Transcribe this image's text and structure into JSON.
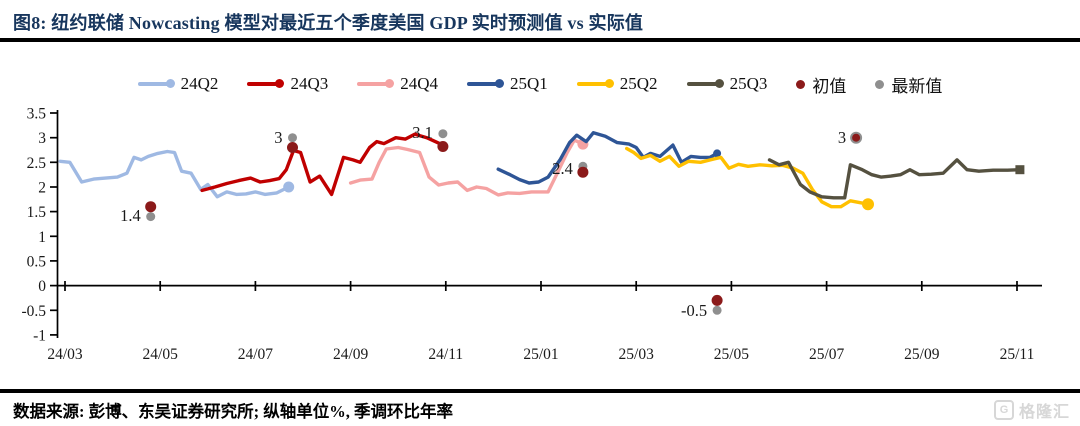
{
  "header": {
    "title": "图8:  纽约联储 Nowcasting 模型对最近五个季度美国 GDP 实时预测值 vs 实际值"
  },
  "footer": {
    "source": "数据来源: 彭博、东吴证券研究所; 纵轴单位%, 季调环比年率"
  },
  "watermark": {
    "icon": "G",
    "text": "格隆汇"
  },
  "chart_data": {
    "type": "line",
    "title": "纽约联储 Nowcasting 模型对最近五个季度美国 GDP 实时预测值 vs 实际值",
    "ylabel": "纵轴单位%, 季调环比年率",
    "ylim": [
      -1,
      3.5
    ],
    "yticks": [
      3.5,
      3,
      2.5,
      2,
      1.5,
      1,
      0.5,
      0,
      -0.5,
      -1
    ],
    "x_axis": {
      "tick_labels": [
        "24/03",
        "24/05",
        "24/07",
        "24/09",
        "24/11",
        "25/01",
        "25/03",
        "25/05",
        "25/07",
        "25/09",
        "25/11"
      ],
      "months_per_tick": 2
    },
    "grid": false,
    "legend_position": "top",
    "colors": {
      "initial": "#8B1A1A",
      "latest": "#8F8F8F"
    },
    "legend": [
      {
        "label": "24Q2",
        "color": "#9FB9E3",
        "marker": "line-dot"
      },
      {
        "label": "24Q3",
        "color": "#C00000",
        "marker": "line-dot"
      },
      {
        "label": "24Q4",
        "color": "#F5A2A2",
        "marker": "line-dot"
      },
      {
        "label": "25Q1",
        "color": "#2E5596",
        "marker": "line-dot"
      },
      {
        "label": "25Q2",
        "color": "#FFC000",
        "marker": "line-dot"
      },
      {
        "label": "25Q3",
        "color": "#555140",
        "marker": "line-dot"
      },
      {
        "label": "初值",
        "color": "#8B1A1A",
        "marker": "dot"
      },
      {
        "label": "最新值",
        "color": "#8F8F8F",
        "marker": "dot"
      }
    ],
    "series": [
      {
        "name": "24Q2",
        "color": "#9FB9E3",
        "points": [
          [
            -0.1,
            2.52
          ],
          [
            0.1,
            2.5
          ],
          [
            0.35,
            2.1
          ],
          [
            0.6,
            2.16
          ],
          [
            0.85,
            2.18
          ],
          [
            1.1,
            2.2
          ],
          [
            1.3,
            2.28
          ],
          [
            1.45,
            2.6
          ],
          [
            1.6,
            2.55
          ],
          [
            1.75,
            2.62
          ],
          [
            1.95,
            2.68
          ],
          [
            2.15,
            2.72
          ],
          [
            2.3,
            2.7
          ],
          [
            2.45,
            2.32
          ],
          [
            2.65,
            2.28
          ],
          [
            2.85,
            1.95
          ],
          [
            3.0,
            2.05
          ],
          [
            3.2,
            1.8
          ],
          [
            3.4,
            1.9
          ],
          [
            3.6,
            1.85
          ],
          [
            3.8,
            1.86
          ],
          [
            4.0,
            1.9
          ],
          [
            4.2,
            1.85
          ],
          [
            4.45,
            1.88
          ],
          [
            4.7,
            2.0
          ]
        ],
        "end_dot": {
          "x": 4.7,
          "y": 2.0,
          "shape": "circle",
          "r": 5.5
        }
      },
      {
        "name": "24Q3",
        "color": "#C00000",
        "points": [
          [
            2.88,
            1.93
          ],
          [
            3.15,
            2.0
          ],
          [
            3.4,
            2.07
          ],
          [
            3.65,
            2.13
          ],
          [
            3.9,
            2.18
          ],
          [
            4.1,
            2.1
          ],
          [
            4.3,
            2.13
          ],
          [
            4.5,
            2.17
          ],
          [
            4.65,
            2.35
          ],
          [
            4.8,
            2.74
          ],
          [
            4.95,
            2.7
          ],
          [
            5.15,
            2.1
          ],
          [
            5.35,
            2.22
          ],
          [
            5.6,
            1.85
          ],
          [
            5.85,
            2.6
          ],
          [
            6.05,
            2.55
          ],
          [
            6.2,
            2.5
          ],
          [
            6.4,
            2.8
          ],
          [
            6.55,
            2.92
          ],
          [
            6.7,
            2.88
          ],
          [
            6.95,
            3.0
          ],
          [
            7.15,
            2.97
          ],
          [
            7.35,
            3.07
          ],
          [
            7.6,
            3.0
          ],
          [
            7.94,
            2.85
          ]
        ],
        "end_dot": null
      },
      {
        "name": "24Q4",
        "color": "#F5A2A2",
        "points": [
          [
            6.0,
            2.08
          ],
          [
            6.2,
            2.14
          ],
          [
            6.45,
            2.16
          ],
          [
            6.6,
            2.5
          ],
          [
            6.75,
            2.77
          ],
          [
            7.0,
            2.8
          ],
          [
            7.2,
            2.76
          ],
          [
            7.45,
            2.7
          ],
          [
            7.65,
            2.2
          ],
          [
            7.85,
            2.04
          ],
          [
            8.05,
            2.08
          ],
          [
            8.25,
            2.1
          ],
          [
            8.45,
            1.93
          ],
          [
            8.65,
            2.0
          ],
          [
            8.85,
            1.97
          ],
          [
            9.1,
            1.84
          ],
          [
            9.3,
            1.88
          ],
          [
            9.55,
            1.87
          ],
          [
            9.8,
            1.9
          ],
          [
            10.15,
            1.9
          ],
          [
            10.35,
            2.3
          ],
          [
            10.55,
            2.7
          ],
          [
            10.7,
            2.95
          ],
          [
            10.88,
            2.87
          ]
        ],
        "end_dot": {
          "x": 10.88,
          "y": 2.87,
          "shape": "circle",
          "r": 5.5
        }
      },
      {
        "name": "25Q1",
        "color": "#2E5596",
        "points": [
          [
            9.1,
            2.36
          ],
          [
            9.35,
            2.25
          ],
          [
            9.55,
            2.15
          ],
          [
            9.75,
            2.08
          ],
          [
            9.95,
            2.1
          ],
          [
            10.15,
            2.2
          ],
          [
            10.4,
            2.55
          ],
          [
            10.6,
            2.9
          ],
          [
            10.75,
            3.05
          ],
          [
            10.95,
            2.92
          ],
          [
            11.1,
            3.1
          ],
          [
            11.35,
            3.03
          ],
          [
            11.6,
            2.9
          ],
          [
            11.85,
            2.87
          ],
          [
            12.0,
            2.8
          ],
          [
            12.15,
            2.6
          ],
          [
            12.3,
            2.68
          ],
          [
            12.5,
            2.62
          ],
          [
            12.77,
            2.85
          ],
          [
            12.95,
            2.5
          ],
          [
            13.15,
            2.62
          ],
          [
            13.35,
            2.6
          ],
          [
            13.55,
            2.6
          ],
          [
            13.7,
            2.68
          ]
        ],
        "end_dot": {
          "x": 13.7,
          "y": 2.68,
          "shape": "circle",
          "r": 4
        }
      },
      {
        "name": "25Q2",
        "color": "#FFC000",
        "points": [
          [
            11.8,
            2.78
          ],
          [
            11.95,
            2.7
          ],
          [
            12.1,
            2.58
          ],
          [
            12.3,
            2.64
          ],
          [
            12.5,
            2.52
          ],
          [
            12.7,
            2.62
          ],
          [
            12.9,
            2.42
          ],
          [
            13.1,
            2.52
          ],
          [
            13.35,
            2.5
          ],
          [
            13.6,
            2.56
          ],
          [
            13.78,
            2.6
          ],
          [
            13.95,
            2.38
          ],
          [
            14.15,
            2.46
          ],
          [
            14.35,
            2.42
          ],
          [
            14.6,
            2.45
          ],
          [
            14.85,
            2.43
          ],
          [
            15.08,
            2.44
          ],
          [
            15.3,
            2.38
          ],
          [
            15.5,
            2.28
          ],
          [
            15.7,
            1.95
          ],
          [
            15.9,
            1.7
          ],
          [
            16.1,
            1.6
          ],
          [
            16.3,
            1.6
          ],
          [
            16.5,
            1.72
          ],
          [
            16.87,
            1.65
          ]
        ],
        "end_dot": {
          "x": 16.87,
          "y": 1.65,
          "shape": "circle",
          "r": 6
        }
      },
      {
        "name": "25Q3",
        "color": "#555140",
        "points": [
          [
            14.8,
            2.55
          ],
          [
            15.0,
            2.45
          ],
          [
            15.2,
            2.5
          ],
          [
            15.45,
            2.05
          ],
          [
            15.65,
            1.9
          ],
          [
            15.9,
            1.8
          ],
          [
            16.15,
            1.78
          ],
          [
            16.38,
            1.78
          ],
          [
            16.5,
            2.45
          ],
          [
            16.75,
            2.35
          ],
          [
            16.95,
            2.25
          ],
          [
            17.15,
            2.2
          ],
          [
            17.35,
            2.22
          ],
          [
            17.55,
            2.25
          ],
          [
            17.75,
            2.35
          ],
          [
            17.95,
            2.25
          ],
          [
            18.2,
            2.26
          ],
          [
            18.45,
            2.28
          ],
          [
            18.74,
            2.55
          ],
          [
            18.95,
            2.35
          ],
          [
            19.2,
            2.32
          ],
          [
            19.5,
            2.34
          ],
          [
            19.8,
            2.34
          ],
          [
            20.06,
            2.35
          ]
        ],
        "end_dot": {
          "x": 20.06,
          "y": 2.35,
          "shape": "square",
          "r": 4.5
        }
      }
    ],
    "actuals": [
      {
        "x": 1.8,
        "initial": 1.6,
        "latest": 1.4,
        "label": "1.4",
        "label_y": 1.42
      },
      {
        "x": 4.78,
        "initial": 2.8,
        "latest": 3.0,
        "label": "3",
        "label_y": 3.0
      },
      {
        "x": 7.94,
        "initial": 2.82,
        "latest": 3.08,
        "label": "3.1",
        "label_y": 3.1
      },
      {
        "x": 10.88,
        "initial": 2.3,
        "latest": 2.42,
        "label": "2.4",
        "label_y": 2.37
      },
      {
        "x": 13.7,
        "initial": -0.3,
        "latest": -0.5,
        "label": "-0.5",
        "label_y": -0.5
      },
      {
        "x": 16.62,
        "initial": 3.0,
        "latest": 3.0,
        "label": "3",
        "label_y": 3.0
      }
    ]
  }
}
